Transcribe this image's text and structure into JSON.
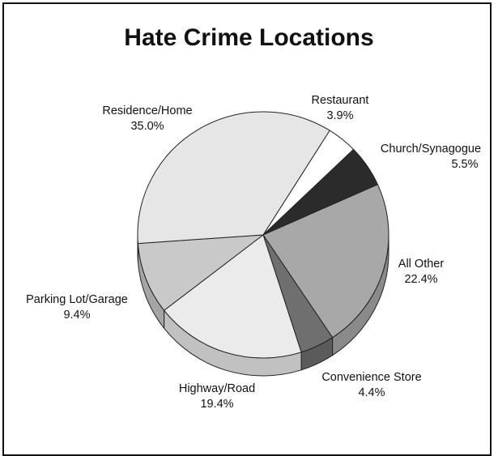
{
  "chart_data": {
    "type": "pie",
    "title": "Hate Crime Locations",
    "slices": [
      {
        "label": "Restaurant",
        "value": 3.9,
        "value_label": "3.9%",
        "color": "#ffffff"
      },
      {
        "label": "Church/Synagogue",
        "value": 5.5,
        "value_label": "5.5%",
        "color": "#2b2b2b"
      },
      {
        "label": "All Other",
        "value": 22.4,
        "value_label": "22.4%",
        "color": "#a8a8a8"
      },
      {
        "label": "Convenience Store",
        "value": 4.4,
        "value_label": "4.4%",
        "color": "#6f6f6f"
      },
      {
        "label": "Highway/Road",
        "value": 19.4,
        "value_label": "19.4%",
        "color": "#ebebeb"
      },
      {
        "label": "Parking Lot/Garage",
        "value": 9.4,
        "value_label": "9.4%",
        "color": "#c9c9c9"
      },
      {
        "label": "Residence/Home",
        "value": 35.0,
        "value_label": "35.0%",
        "color": "#e6e6e6"
      }
    ],
    "style": "3d"
  }
}
